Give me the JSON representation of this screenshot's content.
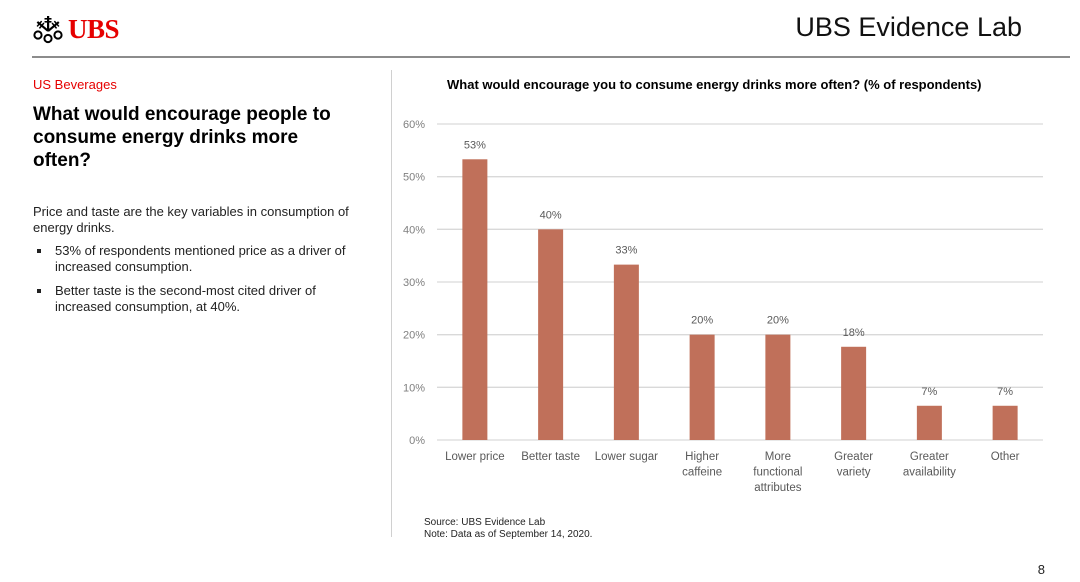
{
  "header": {
    "brand": "UBS",
    "logo_icon": "ubs-keys-icon",
    "title": "UBS Evidence Lab"
  },
  "sidebar": {
    "section": "US Beverages",
    "headline": "What would encourage people to consume energy drinks more often?",
    "intro": "Price and taste are the key variables in consumption of energy drinks.",
    "bullets": [
      "53% of respondents mentioned price as a driver of increased consumption.",
      "Better taste is the second-most cited driver of increased consumption, at 40%."
    ]
  },
  "colors": {
    "accent": "#e60000",
    "bar": "#c0705a",
    "grid": "#d9d9d9"
  },
  "chart_data": {
    "type": "bar",
    "title": "What would encourage you to consume energy drinks more often? (% of respondents)",
    "xlabel": "",
    "ylabel": "",
    "categories": [
      [
        "Lower price"
      ],
      [
        "Better taste"
      ],
      [
        "Lower sugar"
      ],
      [
        "Higher",
        "caffeine"
      ],
      [
        "More",
        "functional",
        "attributes"
      ],
      [
        "Greater",
        "variety"
      ],
      [
        "Greater",
        "availability"
      ],
      [
        "Other"
      ]
    ],
    "values": [
      53.3,
      40,
      33.3,
      20,
      20,
      17.7,
      6.5,
      6.5
    ],
    "data_labels": [
      "53%",
      "40%",
      "33%",
      "20%",
      "20%",
      "18%",
      "7%",
      "7%"
    ],
    "ylim": [
      0,
      60
    ],
    "yticks": [
      0,
      10,
      20,
      30,
      40,
      50,
      60
    ],
    "ytick_labels": [
      "0%",
      "10%",
      "20%",
      "30%",
      "40%",
      "50%",
      "60%"
    ],
    "grid": true,
    "legend": "none"
  },
  "footer": {
    "source": "Source: UBS Evidence Lab",
    "note": "Note: Data as of September 14, 2020.",
    "page_number": "8"
  }
}
